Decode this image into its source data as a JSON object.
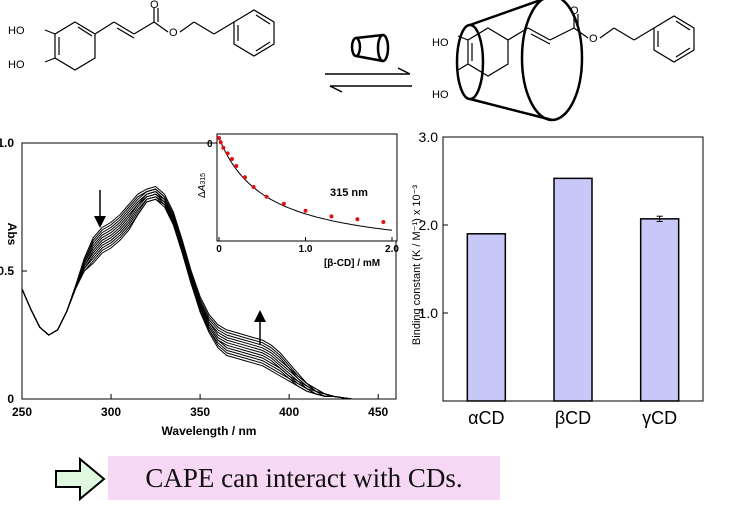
{
  "scheme": {
    "ring_labels": [
      "HO",
      "HO"
    ],
    "carbonyl_label": "O",
    "ester_label": "O"
  },
  "spectra_chart": {
    "chart_data": {
      "type": "line",
      "xlabel": "Wavelength / nm",
      "ylabel": "Abs",
      "xlim": [
        250,
        460
      ],
      "ylim": [
        0,
        1.0
      ],
      "xticks": [
        "250",
        "300",
        "350",
        "400",
        "450"
      ],
      "yticks": [
        "0",
        "0.5",
        "1.0"
      ],
      "x": [
        250,
        255,
        260,
        265,
        270,
        275,
        280,
        285,
        290,
        295,
        300,
        305,
        310,
        315,
        320,
        325,
        330,
        335,
        340,
        345,
        350,
        355,
        360,
        365,
        370,
        375,
        380,
        385,
        390,
        395,
        400,
        405,
        410,
        415,
        420,
        425,
        430,
        435,
        440,
        445,
        450,
        455,
        460
      ],
      "series": [
        {
          "values": [
            0.43,
            0.35,
            0.28,
            0.25,
            0.27,
            0.34,
            0.44,
            0.55,
            0.63,
            0.67,
            0.69,
            0.72,
            0.76,
            0.8,
            0.82,
            0.83,
            0.8,
            0.73,
            0.62,
            0.5,
            0.4,
            0.33,
            0.29,
            0.27,
            0.26,
            0.25,
            0.24,
            0.23,
            0.21,
            0.18,
            0.14,
            0.1,
            0.06,
            0.04,
            0.02,
            0.01,
            0.005,
            0,
            0,
            0,
            0,
            0,
            0
          ]
        },
        {
          "values": [
            0.43,
            0.35,
            0.28,
            0.25,
            0.27,
            0.34,
            0.44,
            0.54,
            0.62,
            0.66,
            0.68,
            0.71,
            0.75,
            0.79,
            0.81,
            0.82,
            0.79,
            0.72,
            0.61,
            0.49,
            0.39,
            0.32,
            0.28,
            0.26,
            0.25,
            0.24,
            0.23,
            0.22,
            0.2,
            0.17,
            0.13,
            0.09,
            0.06,
            0.04,
            0.02,
            0.01,
            0.005,
            0,
            0,
            0,
            0,
            0,
            0
          ]
        },
        {
          "values": [
            0.43,
            0.35,
            0.28,
            0.25,
            0.27,
            0.34,
            0.44,
            0.54,
            0.61,
            0.65,
            0.67,
            0.7,
            0.74,
            0.78,
            0.81,
            0.82,
            0.79,
            0.72,
            0.61,
            0.49,
            0.38,
            0.31,
            0.27,
            0.25,
            0.24,
            0.23,
            0.22,
            0.21,
            0.19,
            0.16,
            0.12,
            0.09,
            0.06,
            0.03,
            0.02,
            0.01,
            0.005,
            0,
            0,
            0,
            0,
            0,
            0
          ]
        },
        {
          "values": [
            0.43,
            0.35,
            0.28,
            0.25,
            0.27,
            0.34,
            0.43,
            0.53,
            0.6,
            0.64,
            0.66,
            0.69,
            0.73,
            0.77,
            0.8,
            0.81,
            0.78,
            0.71,
            0.6,
            0.48,
            0.38,
            0.3,
            0.26,
            0.24,
            0.23,
            0.22,
            0.21,
            0.2,
            0.18,
            0.15,
            0.12,
            0.08,
            0.05,
            0.03,
            0.02,
            0.01,
            0.005,
            0,
            0,
            0,
            0,
            0,
            0
          ]
        },
        {
          "values": [
            0.43,
            0.35,
            0.28,
            0.25,
            0.27,
            0.34,
            0.43,
            0.53,
            0.59,
            0.63,
            0.65,
            0.68,
            0.72,
            0.76,
            0.8,
            0.81,
            0.78,
            0.71,
            0.6,
            0.48,
            0.37,
            0.3,
            0.25,
            0.23,
            0.22,
            0.21,
            0.2,
            0.19,
            0.17,
            0.14,
            0.11,
            0.08,
            0.05,
            0.03,
            0.02,
            0.01,
            0.005,
            0,
            0,
            0,
            0,
            0,
            0
          ]
        },
        {
          "values": [
            0.43,
            0.35,
            0.28,
            0.25,
            0.27,
            0.34,
            0.43,
            0.52,
            0.58,
            0.62,
            0.64,
            0.67,
            0.71,
            0.76,
            0.79,
            0.8,
            0.78,
            0.7,
            0.59,
            0.47,
            0.37,
            0.29,
            0.24,
            0.22,
            0.21,
            0.2,
            0.19,
            0.18,
            0.16,
            0.13,
            0.1,
            0.07,
            0.05,
            0.03,
            0.02,
            0.01,
            0.005,
            0,
            0,
            0,
            0,
            0,
            0
          ]
        },
        {
          "values": [
            0.43,
            0.35,
            0.28,
            0.25,
            0.27,
            0.34,
            0.43,
            0.52,
            0.57,
            0.61,
            0.63,
            0.66,
            0.7,
            0.75,
            0.79,
            0.8,
            0.77,
            0.7,
            0.59,
            0.47,
            0.36,
            0.28,
            0.23,
            0.21,
            0.2,
            0.19,
            0.18,
            0.17,
            0.15,
            0.12,
            0.09,
            0.07,
            0.04,
            0.03,
            0.01,
            0.01,
            0.005,
            0,
            0,
            0,
            0,
            0,
            0
          ]
        },
        {
          "values": [
            0.43,
            0.35,
            0.28,
            0.25,
            0.27,
            0.34,
            0.43,
            0.51,
            0.56,
            0.6,
            0.62,
            0.65,
            0.69,
            0.74,
            0.78,
            0.79,
            0.77,
            0.69,
            0.58,
            0.46,
            0.36,
            0.28,
            0.23,
            0.2,
            0.19,
            0.18,
            0.17,
            0.16,
            0.14,
            0.12,
            0.09,
            0.06,
            0.04,
            0.02,
            0.01,
            0.01,
            0.005,
            0,
            0,
            0,
            0,
            0,
            0
          ]
        },
        {
          "values": [
            0.43,
            0.35,
            0.28,
            0.25,
            0.27,
            0.34,
            0.43,
            0.51,
            0.55,
            0.59,
            0.61,
            0.64,
            0.68,
            0.73,
            0.78,
            0.79,
            0.76,
            0.69,
            0.58,
            0.46,
            0.35,
            0.27,
            0.22,
            0.19,
            0.18,
            0.17,
            0.16,
            0.15,
            0.13,
            0.11,
            0.08,
            0.06,
            0.04,
            0.02,
            0.01,
            0.01,
            0.005,
            0,
            0,
            0,
            0,
            0,
            0
          ]
        },
        {
          "values": [
            0.43,
            0.35,
            0.28,
            0.25,
            0.27,
            0.34,
            0.43,
            0.5,
            0.54,
            0.58,
            0.6,
            0.63,
            0.67,
            0.72,
            0.77,
            0.78,
            0.76,
            0.68,
            0.57,
            0.45,
            0.35,
            0.27,
            0.21,
            0.18,
            0.17,
            0.16,
            0.15,
            0.14,
            0.12,
            0.1,
            0.08,
            0.05,
            0.03,
            0.02,
            0.01,
            0.01,
            0.005,
            0,
            0,
            0,
            0,
            0,
            0
          ]
        },
        {
          "values": [
            0.43,
            0.35,
            0.28,
            0.25,
            0.27,
            0.34,
            0.43,
            0.5,
            0.53,
            0.57,
            0.59,
            0.62,
            0.66,
            0.72,
            0.77,
            0.78,
            0.75,
            0.68,
            0.57,
            0.45,
            0.34,
            0.26,
            0.2,
            0.17,
            0.16,
            0.15,
            0.14,
            0.13,
            0.11,
            0.09,
            0.07,
            0.05,
            0.03,
            0.02,
            0.01,
            0.01,
            0.005,
            0,
            0,
            0,
            0,
            0,
            0
          ]
        }
      ]
    },
    "annotations": {
      "arrow_down": "down-arrow",
      "arrow_up": "up-arrow"
    }
  },
  "inset_chart": {
    "chart_data": {
      "type": "scatter",
      "ylabel_prefix": "Δ",
      "ylabel_var": "A",
      "ylabel_sub": "315",
      "xlabel": "[β-CD] / mM",
      "xlim": [
        0,
        2.0
      ],
      "xticks": [
        "0",
        "1.0",
        "2.0"
      ],
      "ytick_top": "0",
      "annotation": "315 nm",
      "points_color": "#e01010",
      "x": [
        0,
        0.02,
        0.05,
        0.1,
        0.15,
        0.2,
        0.3,
        0.4,
        0.55,
        0.75,
        1.0,
        1.3,
        1.6,
        1.9
      ],
      "y": [
        0,
        -0.03,
        -0.07,
        -0.11,
        -0.15,
        -0.2,
        -0.28,
        -0.35,
        -0.42,
        -0.47,
        -0.52,
        -0.56,
        -0.58,
        -0.6
      ]
    }
  },
  "bar_chart": {
    "chart_data": {
      "type": "bar",
      "categories": [
        "αCD",
        "βCD",
        "γCD"
      ],
      "values": [
        1.9,
        2.53,
        2.07
      ],
      "error": [
        null,
        null,
        0.03
      ],
      "ylim": [
        0,
        3.0
      ],
      "yticks": [
        "1.0",
        "2.0",
        "3.0"
      ],
      "ylabel": "Binding constant (K / M⁻¹) x 10⁻³",
      "bar_color": "#c8c8f8"
    }
  },
  "banner": {
    "text": "CAPE can interact with CDs.",
    "arrow_color": "#e0f8e0",
    "background": "#f6d8f4"
  }
}
